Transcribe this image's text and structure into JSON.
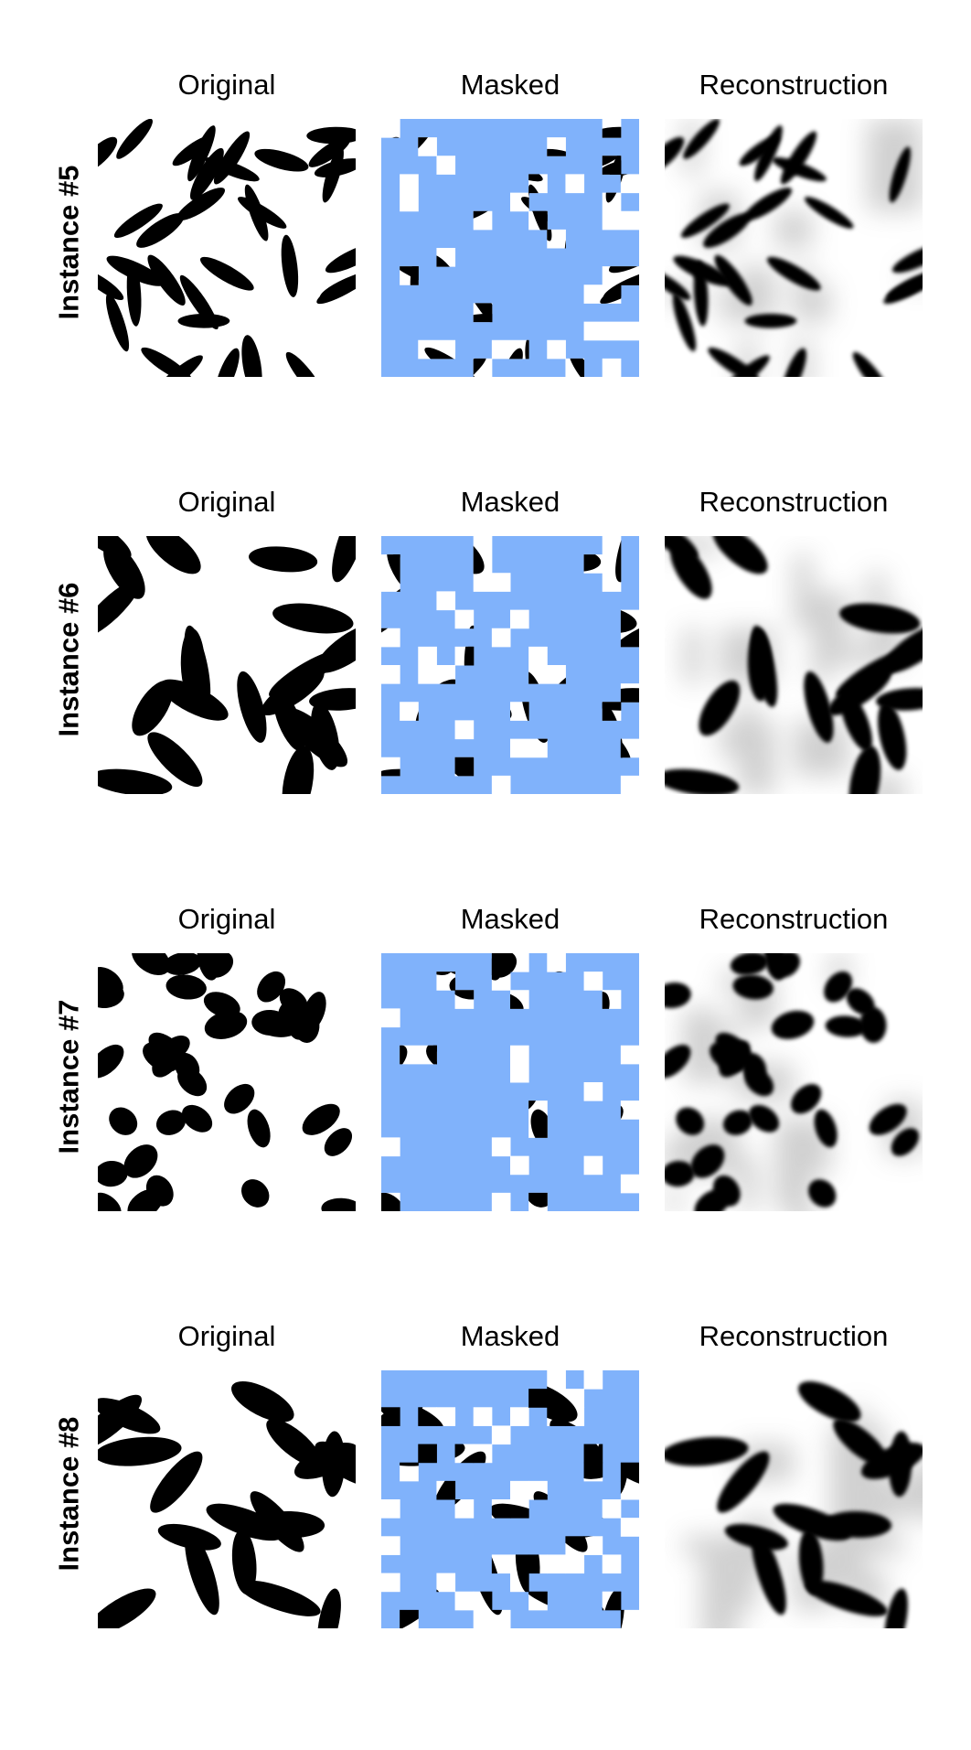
{
  "columns": {
    "original": "Original",
    "masked": "Masked",
    "reconstruction": "Reconstruction"
  },
  "instances": [
    {
      "label": "Instance #5",
      "seed": 5,
      "count": 34,
      "size": "long"
    },
    {
      "label": "Instance #6",
      "seed": 6,
      "count": 22,
      "size": "large"
    },
    {
      "label": "Instance #7",
      "seed": 7,
      "count": 38,
      "size": "round"
    },
    {
      "label": "Instance #8",
      "seed": 8,
      "count": 18,
      "size": "large"
    }
  ],
  "colors": {
    "mask": "#80b2fb",
    "shape": "#000000",
    "background": "#ffffff"
  }
}
